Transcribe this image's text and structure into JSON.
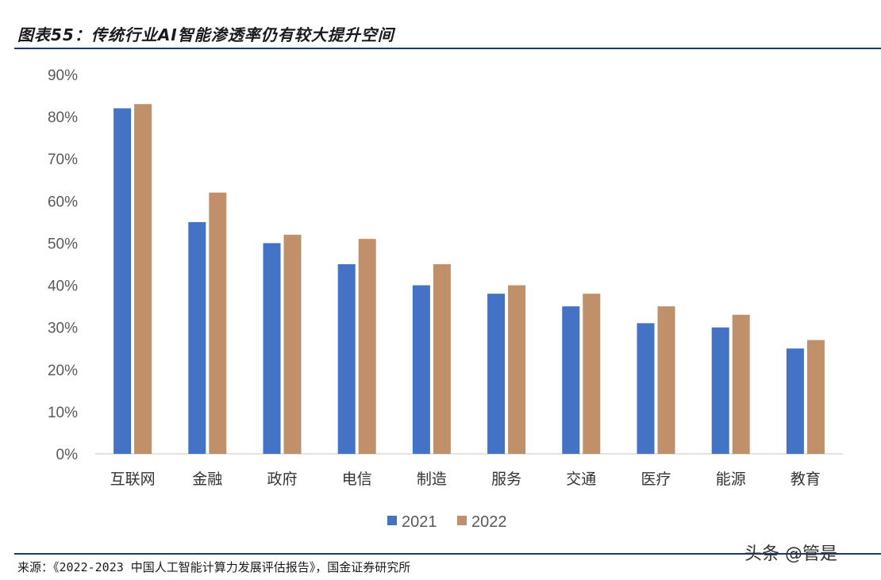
{
  "header": {
    "title": "图表55：传统行业AI智能渗透率仍有较大提升空间"
  },
  "footer": {
    "source": "来源：《2022-2023 中国人工智能计算力发展评估报告》，国金证券研究所",
    "watermark": "头条 @管是"
  },
  "colors": {
    "series_2021": "#4472C4",
    "series_2022": "#C0906A",
    "rule": "#1f3864"
  },
  "chart_data": {
    "type": "bar",
    "categories": [
      "互联网",
      "金融",
      "政府",
      "电信",
      "制造",
      "服务",
      "交通",
      "医疗",
      "能源",
      "教育"
    ],
    "series": [
      {
        "name": "2021",
        "values": [
          82,
          55,
          50,
          45,
          40,
          38,
          35,
          31,
          30,
          25
        ]
      },
      {
        "name": "2022",
        "values": [
          83,
          62,
          52,
          51,
          45,
          40,
          38,
          35,
          33,
          27
        ]
      }
    ],
    "yticks": [
      "0%",
      "10%",
      "20%",
      "30%",
      "40%",
      "50%",
      "60%",
      "70%",
      "80%",
      "90%"
    ],
    "ylim": [
      0,
      90
    ],
    "grid": false,
    "legend": "bottom-center"
  }
}
